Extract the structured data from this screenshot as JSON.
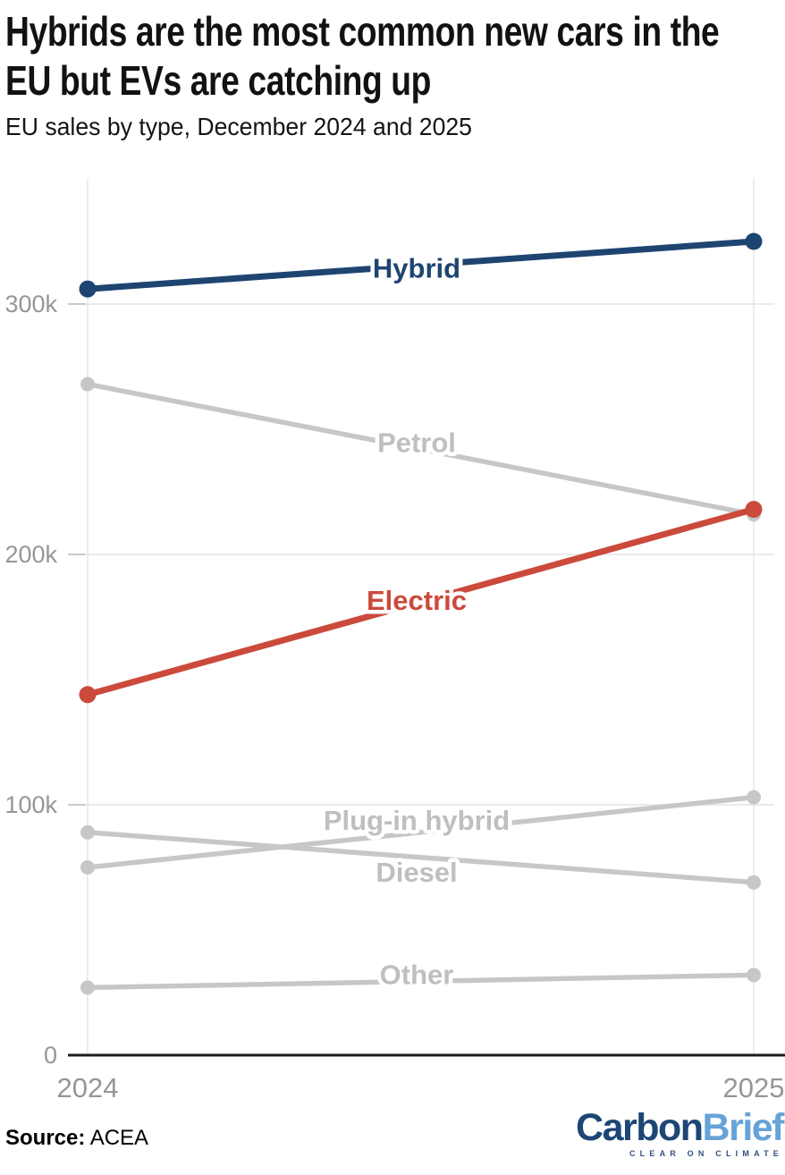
{
  "header": {
    "title_line1": "Hybrids are the most common new cars in the",
    "title_line2": "EU but EVs are catching up",
    "subtitle": "EU sales by type, December 2024 and 2025"
  },
  "footer": {
    "source_label": "Source:",
    "source_value": "ACEA",
    "logo": {
      "part1": "Carbon",
      "part2": "Brief",
      "tagline": "CLEAR ON CLIMATE"
    }
  },
  "colors": {
    "hybrid": "#1e4571",
    "electric": "#cb4a3c",
    "neutral_line": "#c7c7c7",
    "neutral_label": "#bfbfbf",
    "axis_text": "#969696",
    "gridline": "#e4e4e4",
    "vertical_gridline": "#ededed",
    "tick": "#c9c9c9",
    "axis_line": "#1a1a1a"
  },
  "chart_data": {
    "type": "line",
    "subtype": "slope",
    "title": "Hybrids are the most common new cars in the EU but EVs are catching up",
    "subtitle": "EU sales by type, December 2024 and 2025",
    "xlabel": "",
    "ylabel": "",
    "unit": "new car sales (values in thousands)",
    "grid": true,
    "legend_position": "inline-labels",
    "ylim_k": [
      0,
      350
    ],
    "x_categories": [
      "2024",
      "2025"
    ],
    "y_ticks": [
      {
        "label": "0",
        "value_k": 0
      },
      {
        "label": "100k",
        "value_k": 100
      },
      {
        "label": "200k",
        "value_k": 200
      },
      {
        "label": "300k",
        "value_k": 300
      }
    ],
    "series": [
      {
        "name": "Petrol",
        "values_k": [
          268,
          216
        ],
        "color_key": "neutral",
        "label_dy": -8
      },
      {
        "name": "Diesel",
        "values_k": [
          89,
          69
        ],
        "color_key": "neutral",
        "label_dy": 16
      },
      {
        "name": "Plug-in hybrid",
        "values_k": [
          75,
          103
        ],
        "color_key": "neutral",
        "label_dy": -14
      },
      {
        "name": "Other",
        "values_k": [
          27,
          32
        ],
        "color_key": "neutral",
        "label_dy": -8
      },
      {
        "name": "Hybrid",
        "values_k": [
          306,
          325
        ],
        "color_key": "hybrid",
        "label_dy": 3
      },
      {
        "name": "Electric",
        "values_k": [
          144,
          218
        ],
        "color_key": "electric",
        "label_dy": -2
      }
    ]
  }
}
